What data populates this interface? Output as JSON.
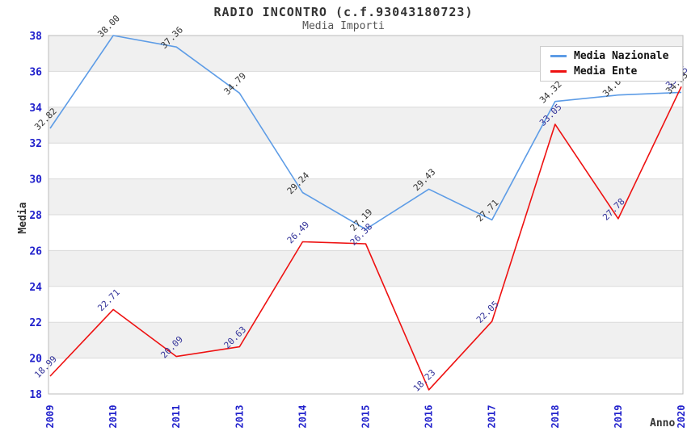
{
  "header": {
    "title": "RADIO INCONTRO (c.f.93043180723)",
    "subtitle": "Media Importi"
  },
  "chart_data": {
    "type": "line",
    "categories": [
      "2009",
      "2010",
      "2011",
      "2013",
      "2014",
      "2015",
      "2016",
      "2017",
      "2018",
      "2019",
      "2020"
    ],
    "series": [
      {
        "name": "Media Nazionale",
        "color": "#5D9CE6",
        "label_color": "#333333",
        "values": [
          32.82,
          38.0,
          37.36,
          34.79,
          29.24,
          27.19,
          29.43,
          27.71,
          34.32,
          34.68,
          34.83
        ]
      },
      {
        "name": "Media Ente",
        "color": "#EE1111",
        "label_color": "#333399",
        "values": [
          18.99,
          22.71,
          20.09,
          20.63,
          26.49,
          26.38,
          18.23,
          22.05,
          33.05,
          27.78,
          35.15
        ]
      }
    ],
    "xlabel": "Anno",
    "ylabel": "Media",
    "ylim": [
      18,
      38
    ],
    "ytick_step": 2,
    "yticks": [
      18,
      20,
      22,
      24,
      26,
      28,
      30,
      32,
      34,
      36,
      38
    ],
    "grid": true,
    "legend_position": "top-right",
    "band_color": "#F0F0F0",
    "grid_color": "#DADADA",
    "axis_color": "#BBBBBB",
    "tick_label_color": "#2222CC"
  }
}
